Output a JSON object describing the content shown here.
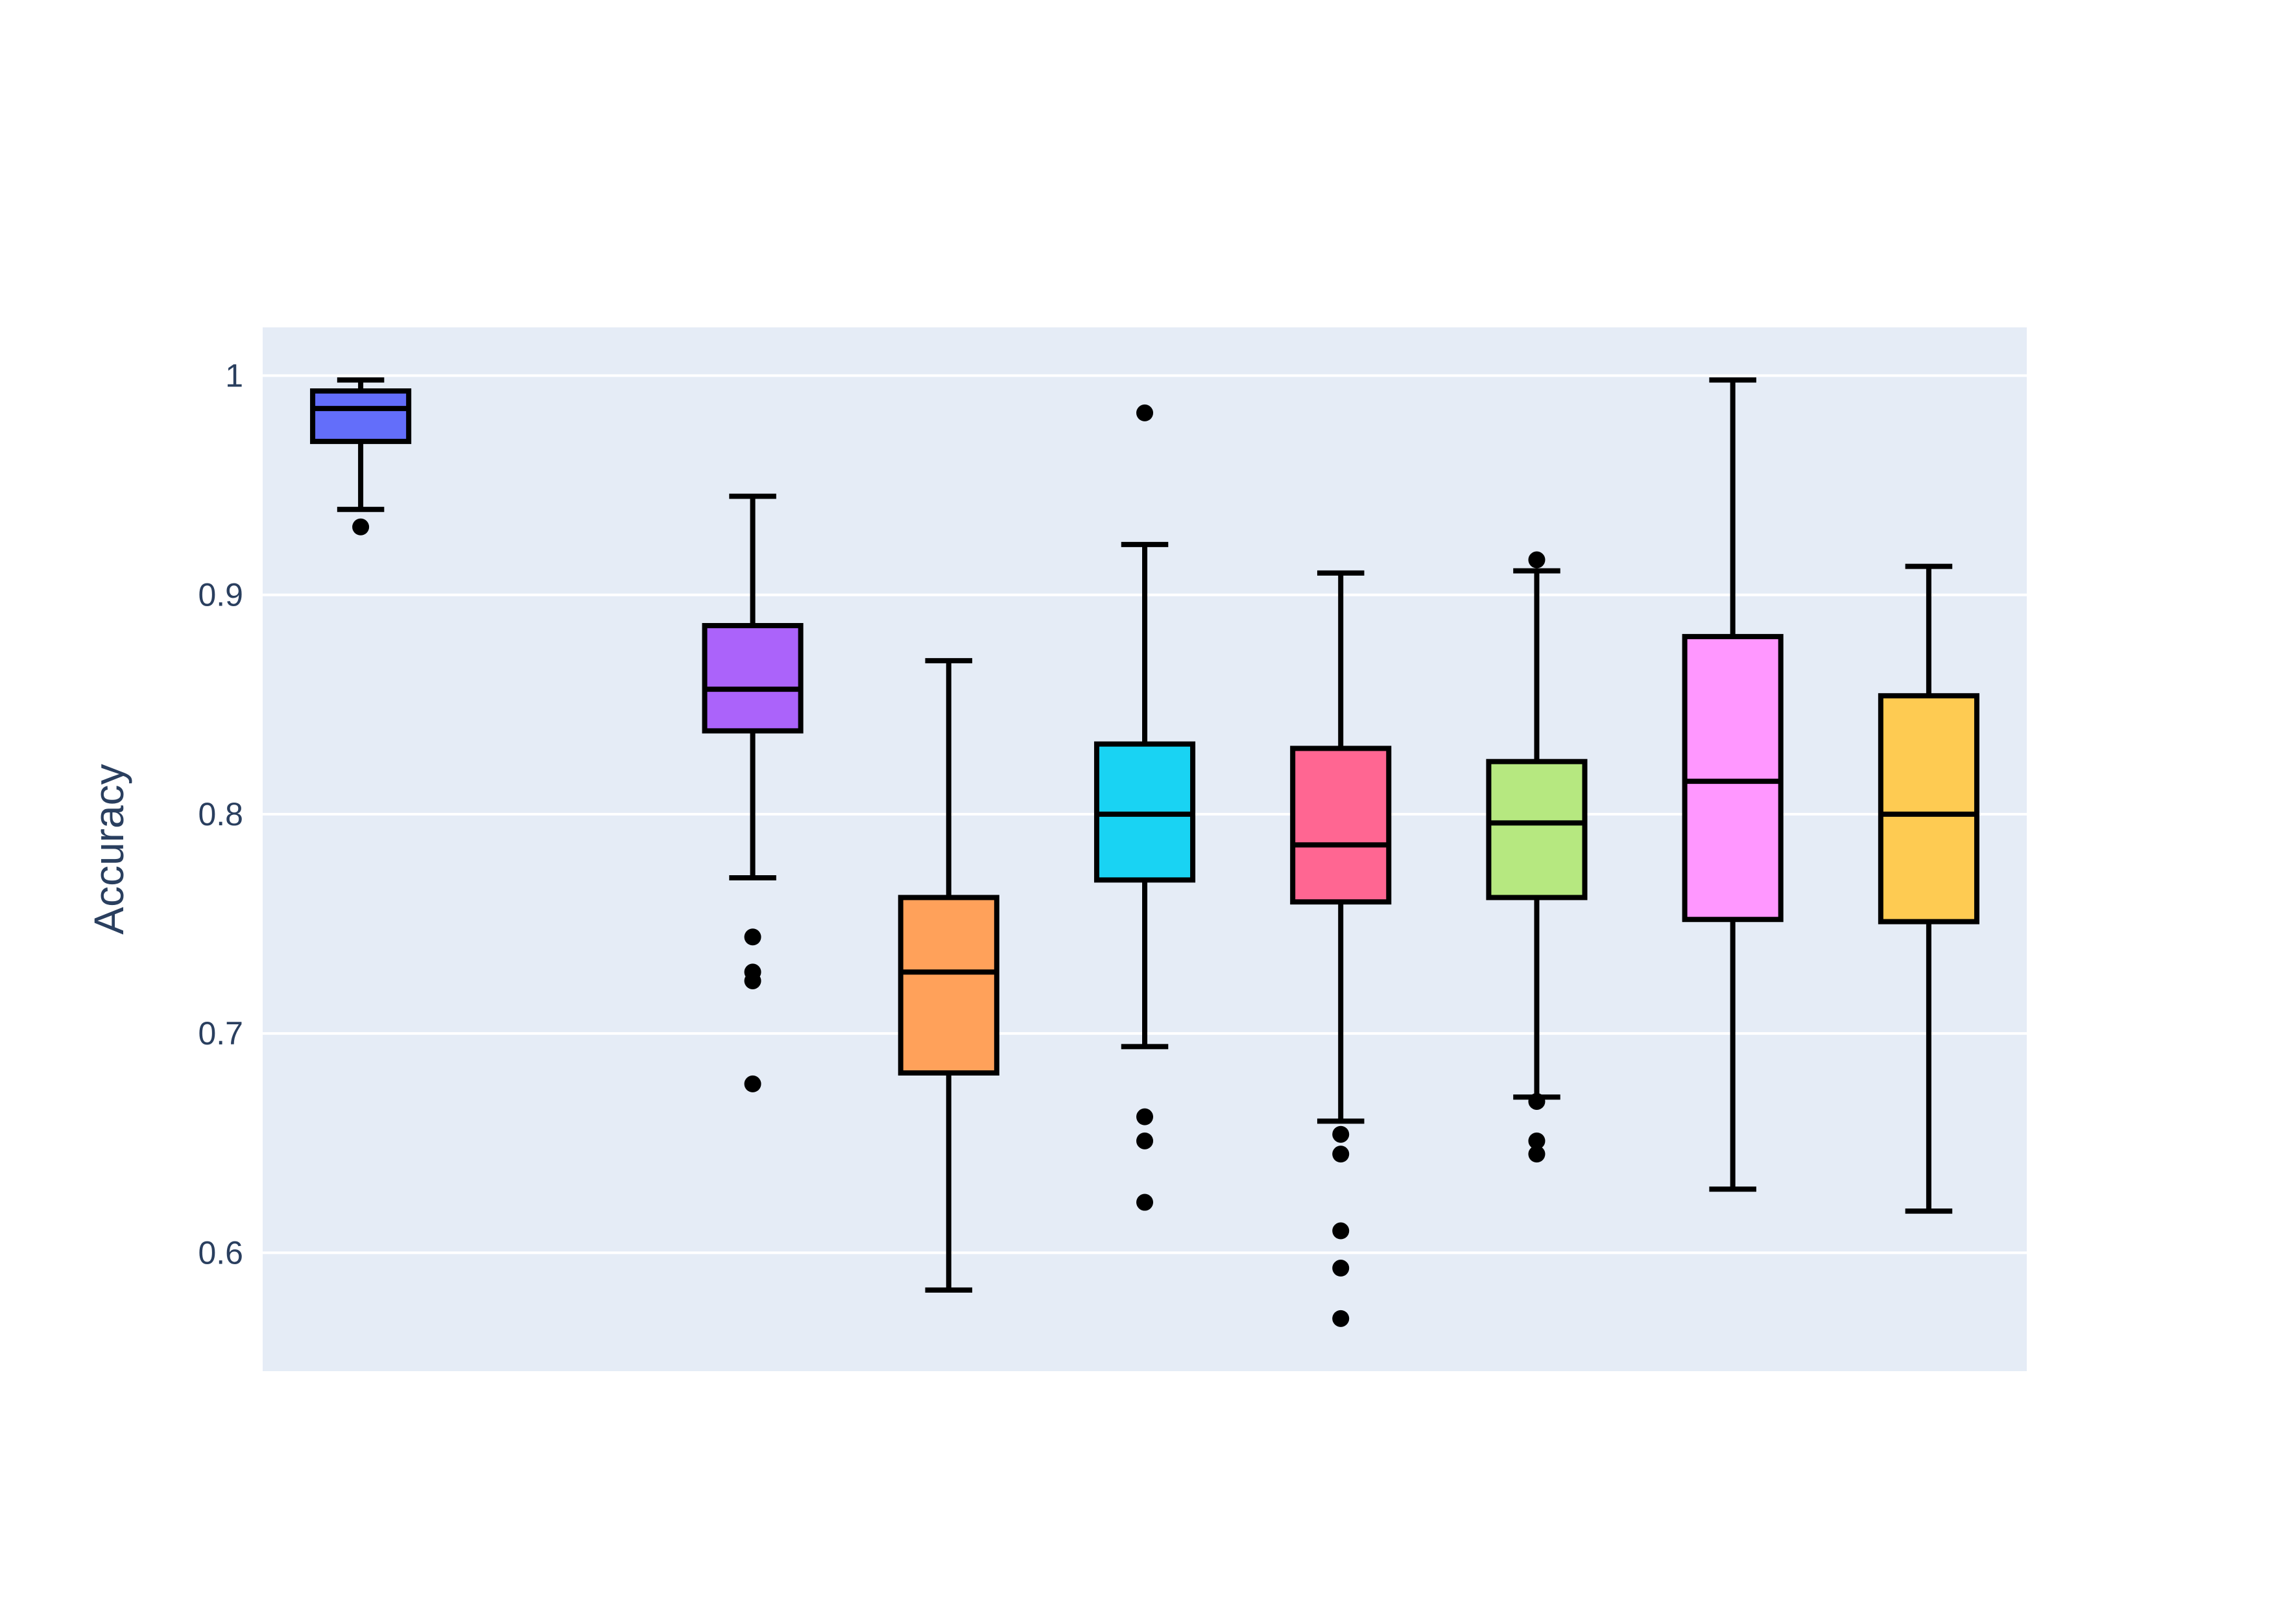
{
  "chart_data": {
    "type": "box",
    "title": "",
    "xlabel": "",
    "ylabel": "Accuracy",
    "ylim": [
      0.546,
      1.022
    ],
    "yticks": [
      0.6,
      0.7,
      0.8,
      0.9,
      1
    ],
    "ytick_labels": [
      "0.6",
      "0.7",
      "0.8",
      "0.9",
      "1"
    ],
    "grid": true,
    "legend": "none",
    "plot_background": "#E5ECF6",
    "grid_color": "#FFFFFF",
    "outline_color": "#000000",
    "series": [
      {
        "color": "#636EFA",
        "whisker_low": 0.939,
        "q1": 0.97,
        "median": 0.985,
        "q3": 0.993,
        "whisker_high": 0.998,
        "outliers": [
          0.931
        ]
      },
      {
        "color": "#EF553B",
        "empty": true
      },
      {
        "color": "#AB63FA",
        "whisker_low": 0.771,
        "q1": 0.838,
        "median": 0.857,
        "q3": 0.886,
        "whisker_high": 0.945,
        "outliers": [
          0.744,
          0.728,
          0.724,
          0.677
        ]
      },
      {
        "color": "#FFA15A",
        "whisker_low": 0.583,
        "q1": 0.682,
        "median": 0.728,
        "q3": 0.762,
        "whisker_high": 0.87,
        "outliers": []
      },
      {
        "color": "#19D3F3",
        "whisker_low": 0.694,
        "q1": 0.77,
        "median": 0.8,
        "q3": 0.832,
        "whisker_high": 0.923,
        "outliers": [
          0.983,
          0.662,
          0.651,
          0.623
        ]
      },
      {
        "color": "#FF6692",
        "whisker_low": 0.66,
        "q1": 0.76,
        "median": 0.786,
        "q3": 0.83,
        "whisker_high": 0.91,
        "outliers": [
          0.654,
          0.645,
          0.61,
          0.593,
          0.57
        ]
      },
      {
        "color": "#B6E880",
        "whisker_low": 0.671,
        "q1": 0.762,
        "median": 0.796,
        "q3": 0.824,
        "whisker_high": 0.911,
        "outliers": [
          0.916,
          0.669,
          0.651,
          0.645
        ]
      },
      {
        "color": "#FF97FF",
        "whisker_low": 0.629,
        "q1": 0.752,
        "median": 0.815,
        "q3": 0.881,
        "whisker_high": 0.998,
        "outliers": []
      },
      {
        "color": "#FECB52",
        "whisker_low": 0.619,
        "q1": 0.751,
        "median": 0.8,
        "q3": 0.854,
        "whisker_high": 0.913,
        "outliers": []
      }
    ]
  }
}
